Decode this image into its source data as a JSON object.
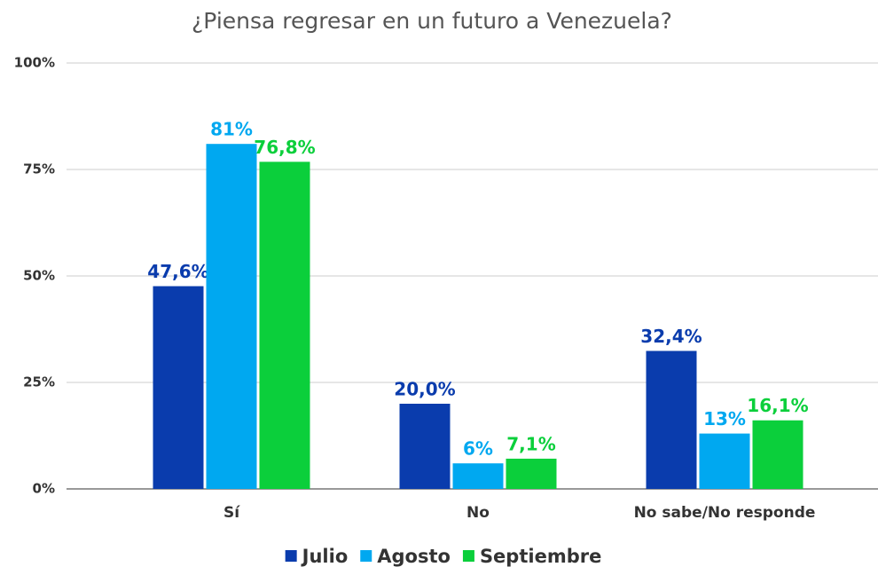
{
  "chart_data": {
    "type": "bar",
    "title": "¿Piensa regresar en un futuro a Venezuela?",
    "categories": [
      "Sí",
      "No",
      "No sabe/No responde"
    ],
    "series": [
      {
        "name": "Julio",
        "color": "#0a3cad",
        "values": [
          47.6,
          20.0,
          32.4
        ],
        "value_labels": [
          "47,6%",
          "20,0%",
          "32,4%"
        ]
      },
      {
        "name": "Agosto",
        "color": "#00a8f0",
        "values": [
          81,
          6,
          13
        ],
        "value_labels": [
          "81%",
          "6%",
          "13%"
        ]
      },
      {
        "name": "Septiembre",
        "color": "#0bcf3b",
        "values": [
          76.8,
          7.1,
          16.1
        ],
        "value_labels": [
          "76,8%",
          "7,1%",
          "16,1%"
        ]
      }
    ],
    "ylim": [
      0,
      100
    ],
    "yticks": [
      {
        "value": 0,
        "label": "0%"
      },
      {
        "value": 25,
        "label": "25%"
      },
      {
        "value": 50,
        "label": "50%"
      },
      {
        "value": 75,
        "label": "75%"
      },
      {
        "value": 100,
        "label": "100%"
      }
    ],
    "grid": true,
    "legend": "bottom"
  }
}
